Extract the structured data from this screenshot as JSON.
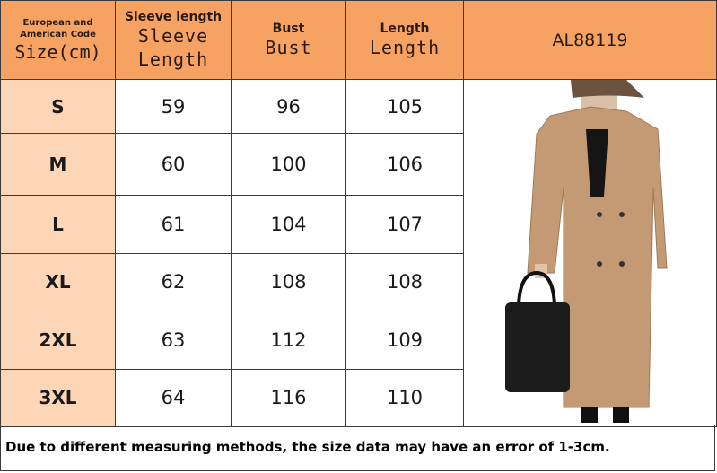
{
  "header": {
    "size_small": "European and American Code",
    "size_big": "Size(cm)",
    "sleeve_small": "Sleeve length",
    "sleeve_big": "Sleeve Length",
    "bust_small": "Bust",
    "bust_big": "Bust",
    "length_small": "Length",
    "length_big": "Length",
    "product_code": "AL88119"
  },
  "rows": [
    {
      "size": "S",
      "sleeve": "59",
      "bust": "96",
      "length": "105"
    },
    {
      "size": "M",
      "sleeve": "60",
      "bust": "100",
      "length": "106"
    },
    {
      "size": "L",
      "sleeve": "61",
      "bust": "104",
      "length": "107"
    },
    {
      "size": "XL",
      "sleeve": "62",
      "bust": "108",
      "length": "108"
    },
    {
      "size": "2XL",
      "sleeve": "63",
      "bust": "112",
      "length": "109"
    },
    {
      "size": "3XL",
      "sleeve": "64",
      "bust": "116",
      "length": "110"
    }
  ],
  "note": "Due to different measuring methods, the size data may have an error of 1-3cm.",
  "colors": {
    "header": "#f5a262",
    "size_column": "#fcd6b6",
    "coat": "#c39a74"
  }
}
